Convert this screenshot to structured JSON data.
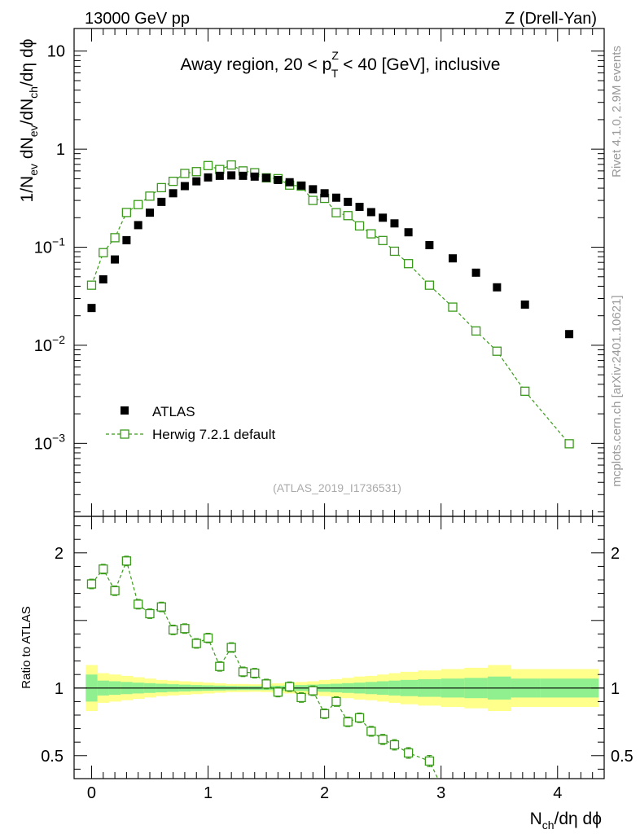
{
  "header": {
    "left_label": "13000 GeV pp",
    "right_label": "Z (Drell-Yan)"
  },
  "side_labels": {
    "rivet": "Rivet 4.1.0,  2.9M events",
    "mcplots": "mcplots.cern.ch [arXiv:2401.10621]"
  },
  "chart_data": [
    {
      "type": "scatter",
      "name": "main",
      "title": "Away region, 20 < pT^Z < 40 [GeV], inclusive",
      "title_parts": {
        "pre": "Away region, 20 < p",
        "sup": "Z",
        "sub": "T",
        "post": " < 40 [GeV], inclusive"
      },
      "ylabel": "1/N_ev dN_ev/dN_ch/dη dϕ",
      "ylabel_parts": [
        "1/N",
        "ev",
        " dN",
        "ev",
        "/dN",
        "ch",
        "/dη dϕ"
      ],
      "yscale": "log",
      "ylim": [
        0.00018,
        17
      ],
      "xlim": [
        -0.15,
        4.4
      ],
      "y_tick_labels": [
        {
          "value": 10,
          "base": "10",
          "exp": ""
        },
        {
          "value": 1,
          "base": "1",
          "exp": ""
        },
        {
          "value": 0.1,
          "base": "10",
          "exp": "−1"
        },
        {
          "value": 0.01,
          "base": "10",
          "exp": "−2"
        },
        {
          "value": 0.001,
          "base": "10",
          "exp": "−3"
        }
      ],
      "watermark": "(ATLAS_2019_I1736531)",
      "legend": {
        "position": "lower-left",
        "entries": [
          {
            "label": "ATLAS",
            "marker": "filled-square",
            "color": "#000000"
          },
          {
            "label": "Herwig 7.2.1 default",
            "marker": "open-square-dashed",
            "color": "#3a9a1a"
          }
        ]
      },
      "series": [
        {
          "name": "ATLAS",
          "color": "#000000",
          "x": [
            0.0,
            0.1,
            0.2,
            0.3,
            0.4,
            0.5,
            0.6,
            0.7,
            0.8,
            0.9,
            1.0,
            1.1,
            1.2,
            1.3,
            1.4,
            1.5,
            1.6,
            1.7,
            1.8,
            1.9,
            2.0,
            2.1,
            2.2,
            2.3,
            2.4,
            2.5,
            2.6,
            2.72,
            2.9,
            3.1,
            3.3,
            3.48,
            3.72,
            4.1
          ],
          "y": [
            0.024,
            0.047,
            0.075,
            0.118,
            0.168,
            0.225,
            0.29,
            0.355,
            0.42,
            0.47,
            0.515,
            0.535,
            0.54,
            0.535,
            0.525,
            0.51,
            0.485,
            0.46,
            0.425,
            0.39,
            0.355,
            0.32,
            0.29,
            0.258,
            0.228,
            0.2,
            0.175,
            0.142,
            0.105,
            0.077,
            0.055,
            0.039,
            0.026,
            0.013
          ]
        },
        {
          "name": "Herwig 7.2.1 default",
          "color": "#3a9a1a",
          "x": [
            0.0,
            0.1,
            0.2,
            0.3,
            0.4,
            0.5,
            0.6,
            0.7,
            0.8,
            0.9,
            1.0,
            1.1,
            1.2,
            1.3,
            1.4,
            1.5,
            1.6,
            1.7,
            1.8,
            1.9,
            2.0,
            2.1,
            2.2,
            2.3,
            2.4,
            2.5,
            2.6,
            2.72,
            2.9,
            3.1,
            3.3,
            3.48,
            3.72,
            4.1
          ],
          "y": [
            0.041,
            0.088,
            0.125,
            0.226,
            0.272,
            0.332,
            0.405,
            0.47,
            0.565,
            0.59,
            0.68,
            0.62,
            0.69,
            0.6,
            0.575,
            0.51,
            0.5,
            0.43,
            0.42,
            0.3,
            0.315,
            0.225,
            0.21,
            0.165,
            0.137,
            0.117,
            0.091,
            0.068,
            0.041,
            0.0245,
            0.014,
            0.0087,
            0.0034,
            0.00099
          ]
        }
      ]
    },
    {
      "type": "scatter",
      "name": "ratio",
      "ylabel": "Ratio to ATLAS",
      "ylim": [
        0.33,
        2.27
      ],
      "xlim": [
        -0.15,
        4.4
      ],
      "y_tick_labels": [
        "2",
        "1",
        "0.5"
      ],
      "y_tick_values": [
        2,
        1,
        0.5
      ],
      "x_tick_labels": [
        "0",
        "1",
        "2",
        "3",
        "4"
      ],
      "x_tick_values": [
        0,
        1,
        2,
        3,
        4
      ],
      "xlabel": "N_ch/dη dϕ",
      "xlabel_parts": [
        "N",
        "ch",
        "/dη dϕ"
      ],
      "reference_line": 1.0,
      "band_edges": [
        -0.05,
        0.05,
        0.15,
        0.25,
        0.35,
        0.45,
        0.55,
        0.65,
        0.75,
        0.85,
        0.95,
        1.05,
        1.15,
        1.25,
        1.35,
        1.45,
        1.55,
        1.65,
        1.75,
        1.85,
        1.95,
        2.05,
        2.15,
        2.25,
        2.35,
        2.45,
        2.55,
        2.65,
        2.8,
        3.0,
        3.2,
        3.4,
        3.6,
        3.85,
        4.35
      ],
      "band_inner": [
        0.1,
        0.055,
        0.05,
        0.045,
        0.04,
        0.036,
        0.032,
        0.028,
        0.025,
        0.022,
        0.02,
        0.018,
        0.016,
        0.015,
        0.015,
        0.015,
        0.017,
        0.02,
        0.022,
        0.025,
        0.028,
        0.032,
        0.036,
        0.04,
        0.045,
        0.05,
        0.055,
        0.06,
        0.065,
        0.07,
        0.075,
        0.085,
        0.07,
        0.07
      ],
      "band_outer": [
        0.17,
        0.11,
        0.1,
        0.09,
        0.08,
        0.07,
        0.06,
        0.055,
        0.05,
        0.045,
        0.04,
        0.035,
        0.03,
        0.03,
        0.028,
        0.03,
        0.035,
        0.04,
        0.045,
        0.05,
        0.06,
        0.065,
        0.075,
        0.085,
        0.09,
        0.1,
        0.11,
        0.12,
        0.13,
        0.14,
        0.15,
        0.17,
        0.14,
        0.14
      ],
      "band_colors": {
        "inner": "#90f090",
        "outer": "#ffff8c"
      },
      "series": [
        {
          "name": "Herwig 7.2.1 default / ATLAS",
          "color": "#3a9a1a",
          "x": [
            0.0,
            0.1,
            0.2,
            0.3,
            0.4,
            0.5,
            0.6,
            0.7,
            0.8,
            0.9,
            1.0,
            1.1,
            1.2,
            1.3,
            1.4,
            1.5,
            1.6,
            1.7,
            1.8,
            1.9,
            2.0,
            2.1,
            2.2,
            2.3,
            2.4,
            2.5,
            2.6,
            2.72,
            2.9
          ],
          "y": [
            1.77,
            1.88,
            1.72,
            1.94,
            1.62,
            1.55,
            1.6,
            1.43,
            1.44,
            1.33,
            1.37,
            1.16,
            1.3,
            1.12,
            1.11,
            1.03,
            0.97,
            1.01,
            0.93,
            0.98,
            0.81,
            0.9,
            0.75,
            0.78,
            0.68,
            0.62,
            0.58,
            0.52,
            0.46
          ]
        }
      ]
    }
  ]
}
